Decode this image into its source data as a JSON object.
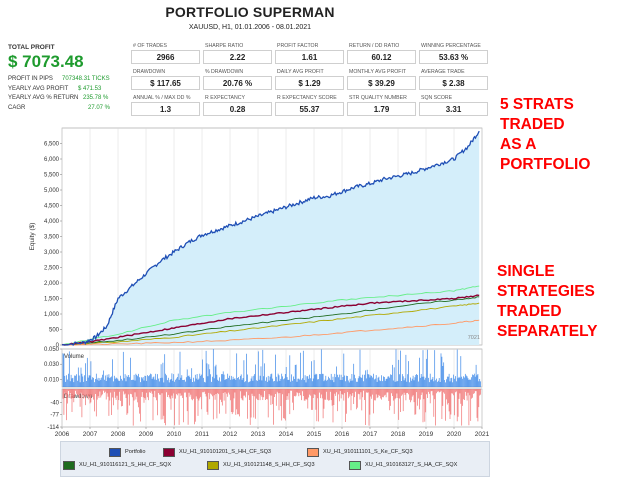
{
  "header": {
    "title": "PORTFOLIO SUPERMAN",
    "subtitle": "XAUUSD, H1, 01.01.2006 - 08.01.2021"
  },
  "total_profit": {
    "label": "TOTAL PROFIT",
    "value": "$ 7073.48"
  },
  "side_stats": [
    {
      "label": "PROFIT IN PIPS",
      "value": "707348.31 TICKS"
    },
    {
      "label": "YEARLY AVG PROFIT",
      "value": "$ 471.53"
    },
    {
      "label": "YEARLY AVG % RETURN",
      "value": "235.78 %"
    },
    {
      "label": "CAGR",
      "value": "27.07 %"
    }
  ],
  "metrics": [
    {
      "label": "# OF TRADES",
      "value": "2966"
    },
    {
      "label": "SHARPE RATIO",
      "value": "2.22"
    },
    {
      "label": "PROFIT FACTOR",
      "value": "1.61"
    },
    {
      "label": "RETURN / DD RATIO",
      "value": "60.12"
    },
    {
      "label": "WINNING PERCENTAGE",
      "value": "53.63 %"
    },
    {
      "label": "DRAWDOWN",
      "value": "$ 117.65"
    },
    {
      "label": "% DRAWDOWN",
      "value": "20.76 %"
    },
    {
      "label": "DAILY AVG PROFIT",
      "value": "$ 1.29"
    },
    {
      "label": "MONTHLY AVG PROFIT",
      "value": "$ 39.29"
    },
    {
      "label": "AVERAGE TRADE",
      "value": "$ 2.38"
    },
    {
      "label": "ANNUAL % / MAX DD %",
      "value": "1.3"
    },
    {
      "label": "R EXPECTANCY",
      "value": "0.28"
    },
    {
      "label": "R EXPECTANCY SCORE",
      "value": "55.37"
    },
    {
      "label": "STR QUALITY NUMBER",
      "value": "1.79"
    },
    {
      "label": "SQN SCORE",
      "value": "3.31"
    }
  ],
  "annotations": [
    {
      "text": "5 STRATS TRADED AS A PORTFOLIO",
      "lines": [
        "5 STRATS",
        "TRADED",
        "AS A",
        "PORTFOLIO"
      ]
    },
    {
      "text": "SINGLE STRATEGIES TRADED SEPARATELY",
      "lines": [
        "SINGLE",
        "STRATEGIES",
        "TRADED",
        "SEPARATELY"
      ]
    }
  ],
  "chart_data": [
    {
      "type": "line",
      "ylabel": "Equity ($)",
      "ylim": [
        0,
        7000
      ],
      "yticks": [
        0,
        500,
        1000,
        1500,
        2000,
        2500,
        3000,
        3500,
        4000,
        4500,
        5000,
        5500,
        6000,
        6500
      ],
      "ytick_labels": [
        "0",
        "500",
        "1,000",
        "1,500",
        "2,000",
        "2,500",
        "3,000",
        "3,500",
        "4,000",
        "4,500",
        "5,000",
        "5,500",
        "6,000",
        "6,500"
      ],
      "xlim": [
        2006,
        2021
      ],
      "x_ticks": [
        "2006",
        "2007",
        "2008",
        "2009",
        "2010",
        "2011",
        "2012",
        "2013",
        "2014",
        "2015",
        "2016",
        "2017",
        "2018",
        "2019",
        "2020",
        "2021"
      ],
      "end_label": "7021",
      "series": [
        {
          "name": "Portfolio",
          "color": "#1f4fb5",
          "x": [
            2006.0,
            2006.8,
            2007.2,
            2007.6,
            2008.0,
            2008.5,
            2009.0,
            2009.5,
            2010.0,
            2010.5,
            2011.0,
            2011.5,
            2012.0,
            2012.5,
            2013.0,
            2013.5,
            2014.0,
            2014.5,
            2015.0,
            2015.5,
            2016.0,
            2016.5,
            2017.0,
            2017.5,
            2018.0,
            2018.5,
            2019.0,
            2019.5,
            2020.0,
            2020.5,
            2020.9
          ],
          "y": [
            0,
            80,
            250,
            600,
            1500,
            1900,
            2300,
            2700,
            3000,
            3300,
            3550,
            3700,
            3850,
            4000,
            4150,
            4300,
            4450,
            4600,
            4750,
            4800,
            4950,
            5100,
            5200,
            5350,
            5450,
            5550,
            5700,
            5850,
            6000,
            6400,
            6900
          ]
        },
        {
          "name": "XU_H1_910101201_S_HH_CF_SQ3",
          "color": "#8b0032",
          "x": [
            2006.0,
            2007.0,
            2008.0,
            2009.0,
            2010.0,
            2011.0,
            2012.0,
            2013.0,
            2014.0,
            2015.0,
            2016.0,
            2017.0,
            2018.0,
            2019.0,
            2020.0,
            2020.9
          ],
          "y": [
            0,
            100,
            250,
            400,
            550,
            700,
            850,
            950,
            1050,
            1150,
            1250,
            1350,
            1400,
            1450,
            1500,
            1600
          ]
        },
        {
          "name": "XU_H1_910111101_S_Ke_CF_SQ3",
          "color": "#ff9966",
          "x": [
            2006.0,
            2008.0,
            2010.0,
            2012.0,
            2014.0,
            2016.0,
            2018.0,
            2020.0,
            2020.9
          ],
          "y": [
            0,
            30,
            80,
            150,
            250,
            400,
            550,
            700,
            800
          ]
        },
        {
          "name": "XU_H1_910116121_S_HH_CF_SQX",
          "color": "#1e6b1e",
          "x": [
            2006.0,
            2008.0,
            2010.0,
            2012.0,
            2014.0,
            2016.0,
            2018.0,
            2020.0,
            2020.9
          ],
          "y": [
            0,
            150,
            350,
            600,
            800,
            1000,
            1250,
            1450,
            1550
          ]
        },
        {
          "name": "XU_H1_910121148_S_HH_CF_SQ3",
          "color": "#b0a800",
          "x": [
            2006.0,
            2008.0,
            2010.0,
            2012.0,
            2014.0,
            2016.0,
            2018.0,
            2020.0,
            2020.9
          ],
          "y": [
            0,
            100,
            250,
            450,
            650,
            850,
            1050,
            1250,
            1350
          ]
        },
        {
          "name": "XU_H1_910163127_S_HA_CF_SQX",
          "color": "#66ee88",
          "x": [
            2006.0,
            2008.0,
            2010.0,
            2012.0,
            2014.0,
            2016.0,
            2018.0,
            2020.0,
            2020.9
          ],
          "y": [
            0,
            350,
            800,
            1050,
            1250,
            1450,
            1600,
            1750,
            1900
          ]
        }
      ]
    },
    {
      "type": "bar",
      "title": "Volume",
      "ylim": [
        0,
        0.05
      ],
      "yticks": [
        0.01,
        0.03,
        0.05
      ],
      "ytick_labels": [
        "0.010",
        "0.030",
        "0.050"
      ]
    },
    {
      "type": "bar",
      "title": "Drawdown",
      "ylabel": "",
      "ylim": [
        -114,
        0
      ],
      "yticks": [
        -40,
        -77,
        -114
      ],
      "ytick_labels": [
        "-40",
        "-77",
        "-114"
      ]
    }
  ]
}
